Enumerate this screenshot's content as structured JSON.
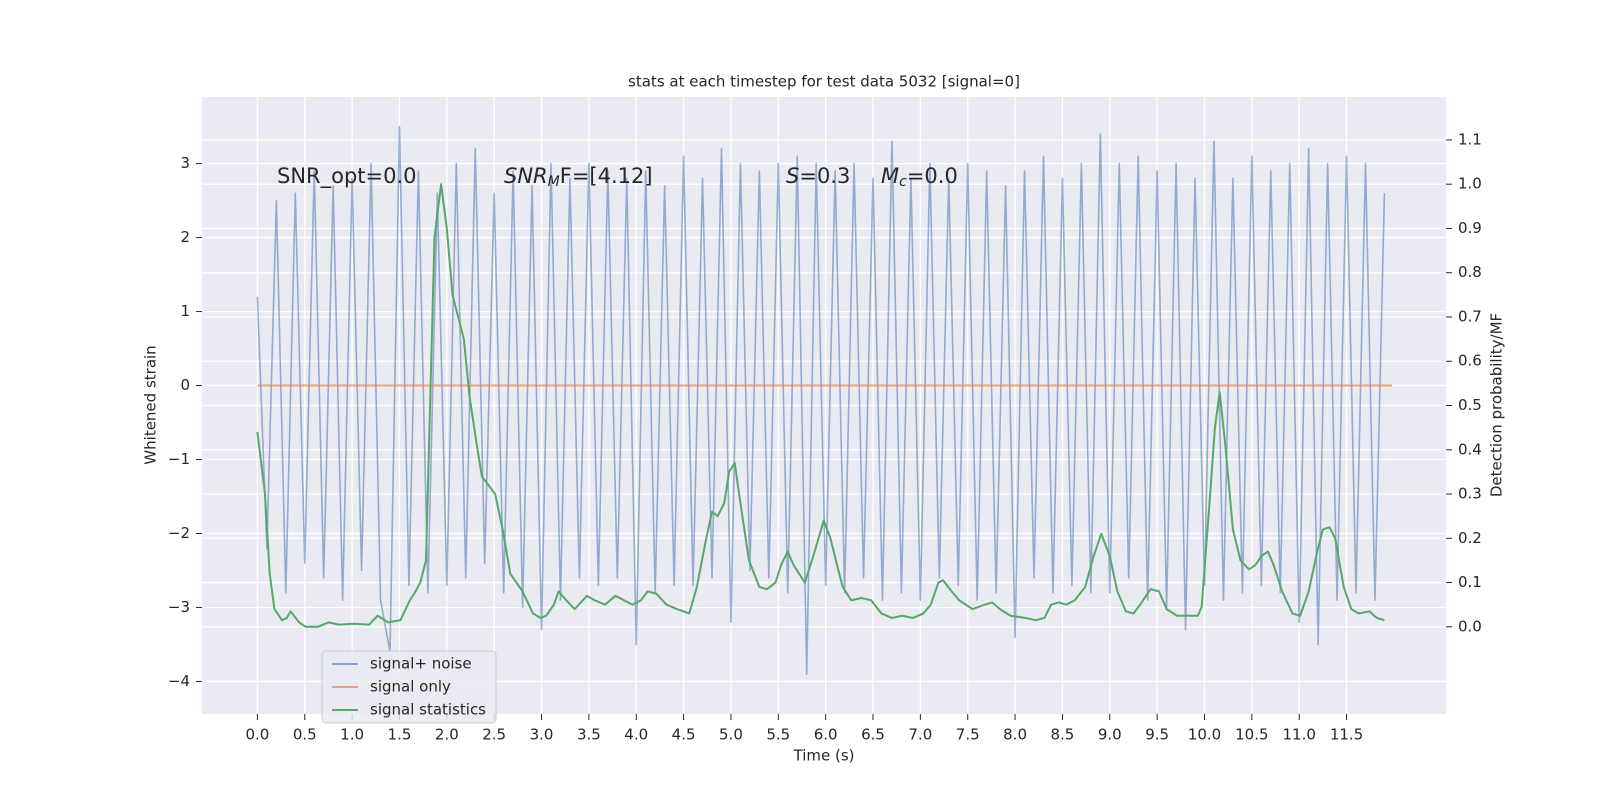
{
  "chart_data": {
    "type": "line",
    "title": "stats at each timestep for test data 5032 [signal=0]",
    "xlabel": "Time (s)",
    "ylabel": "Whitened strain",
    "y2label": "Detection probability/MF",
    "grid": true,
    "xlim": [
      -0.585,
      12.55
    ],
    "ylim": [
      -4.44,
      3.9
    ],
    "y2lim": [
      -0.197,
      1.197
    ],
    "xticks": [
      {
        "value": 0,
        "label": "0.0"
      },
      {
        "value": 0.5,
        "label": "0.5"
      },
      {
        "value": 1,
        "label": "1.0"
      },
      {
        "value": 1.5,
        "label": "1.5"
      },
      {
        "value": 2,
        "label": "2.0"
      },
      {
        "value": 2.5,
        "label": "2.5"
      },
      {
        "value": 3,
        "label": "3.0"
      },
      {
        "value": 3.5,
        "label": "3.5"
      },
      {
        "value": 4,
        "label": "4.0"
      },
      {
        "value": 4.5,
        "label": "4.5"
      },
      {
        "value": 5,
        "label": "5.0"
      },
      {
        "value": 5.5,
        "label": "5.5"
      },
      {
        "value": 6,
        "label": "6.0"
      },
      {
        "value": 6.5,
        "label": "6.5"
      },
      {
        "value": 7,
        "label": "7.0"
      },
      {
        "value": 7.5,
        "label": "7.5"
      },
      {
        "value": 8,
        "label": "8.0"
      },
      {
        "value": 8.5,
        "label": "8.5"
      },
      {
        "value": 9,
        "label": "9.0"
      },
      {
        "value": 9.5,
        "label": "9.5"
      },
      {
        "value": 10,
        "label": "10.0"
      },
      {
        "value": 10.5,
        "label": "10.5"
      },
      {
        "value": 11,
        "label": "11.0"
      },
      {
        "value": 11.5,
        "label": "11.5"
      }
    ],
    "yticks": [
      {
        "value": -4,
        "label": "−4"
      },
      {
        "value": -3,
        "label": "−3"
      },
      {
        "value": -2,
        "label": "−2"
      },
      {
        "value": -1,
        "label": "−1"
      },
      0,
      1,
      2,
      3
    ],
    "y2ticks": [
      {
        "value": 0,
        "label": "0.0"
      },
      {
        "value": 0.1,
        "label": "0.1"
      },
      {
        "value": 0.2,
        "label": "0.2"
      },
      {
        "value": 0.3,
        "label": "0.3"
      },
      {
        "value": 0.4,
        "label": "0.4"
      },
      {
        "value": 0.5,
        "label": "0.5"
      },
      {
        "value": 0.6,
        "label": "0.6"
      },
      {
        "value": 0.7,
        "label": "0.7"
      },
      {
        "value": 0.8,
        "label": "0.8"
      },
      {
        "value": 0.9,
        "label": "0.9"
      },
      {
        "value": 1,
        "label": "1.0"
      },
      {
        "value": 1.1,
        "label": "1.1"
      }
    ],
    "annotations": [
      {
        "main": "SNR_opt=0.0"
      },
      {
        "main": "SNR",
        "sub": "M",
        "tail": "F=[4.12]",
        "italic": true
      },
      {
        "main": "S",
        "tail": "=0.3",
        "italic": true
      },
      {
        "main": "M",
        "sub": "c",
        "tail": "=0.0",
        "italic": true
      }
    ],
    "series": [
      {
        "name": "signal+ noise",
        "color": "#4c72b0",
        "axis": "y",
        "x": [
          0,
          0.1,
          0.2,
          0.3,
          0.4,
          0.5,
          0.6,
          0.7,
          0.8,
          0.9,
          1,
          1.1,
          1.2,
          1.3,
          1.4,
          1.5,
          1.6,
          1.7,
          1.8,
          1.9,
          2,
          2.1,
          2.2,
          2.3,
          2.4,
          2.5,
          2.6,
          2.7,
          2.8,
          2.9,
          3,
          3.1,
          3.2,
          3.3,
          3.4,
          3.5,
          3.6,
          3.7,
          3.8,
          3.9,
          4,
          4.1,
          4.2,
          4.3,
          4.4,
          4.5,
          4.6,
          4.7,
          4.8,
          4.9,
          5,
          5.1,
          5.2,
          5.3,
          5.4,
          5.5,
          5.6,
          5.7,
          5.8,
          5.9,
          6,
          6.1,
          6.2,
          6.3,
          6.4,
          6.5,
          6.6,
          6.7,
          6.8,
          6.9,
          7,
          7.1,
          7.2,
          7.3,
          7.4,
          7.5,
          7.6,
          7.7,
          7.8,
          7.9,
          8,
          8.1,
          8.2,
          8.3,
          8.4,
          8.5,
          8.6,
          8.7,
          8.8,
          8.9,
          9,
          9.1,
          9.2,
          9.3,
          9.4,
          9.5,
          9.6,
          9.7,
          9.8,
          9.9,
          10,
          10.1,
          10.2,
          10.3,
          10.4,
          10.5,
          10.6,
          10.7,
          10.8,
          10.9,
          11,
          11.1,
          11.2,
          11.3,
          11.4,
          11.5,
          11.6,
          11.7,
          11.8,
          11.9
        ],
        "values": [
          1.2,
          -2.2,
          2.5,
          -2.8,
          2.6,
          -2.4,
          2.9,
          -2.6,
          2.7,
          -2.9,
          2.8,
          -2.5,
          3.0,
          -2.9,
          -3.6,
          3.5,
          -2.7,
          2.9,
          -2.8,
          2.6,
          -2.7,
          3.0,
          -2.6,
          3.2,
          -2.4,
          2.6,
          -2.8,
          2.9,
          -3.0,
          2.7,
          -3.3,
          3.0,
          -2.9,
          2.8,
          -2.6,
          3.0,
          -2.7,
          2.9,
          -2.6,
          2.8,
          -3.5,
          2.9,
          -2.8,
          2.7,
          -2.7,
          3.1,
          -2.7,
          2.8,
          -2.6,
          3.2,
          -3.2,
          3.0,
          -2.5,
          2.9,
          -2.6,
          3.0,
          -2.8,
          3.1,
          -3.9,
          3.0,
          -2.7,
          2.9,
          -2.8,
          3.0,
          -2.6,
          2.8,
          -2.9,
          3.3,
          -2.8,
          2.8,
          -2.9,
          3.0,
          -2.6,
          2.8,
          -2.7,
          3.0,
          -2.9,
          2.9,
          -2.8,
          2.7,
          -3.4,
          2.9,
          -2.6,
          3.1,
          -2.8,
          2.8,
          -2.7,
          3.0,
          -2.8,
          3.4,
          -2.8,
          3.0,
          -2.6,
          3.1,
          -2.9,
          2.9,
          -3.0,
          3.0,
          -3.3,
          2.8,
          -2.7,
          3.3,
          -2.9,
          2.8,
          -2.8,
          3.1,
          -2.7,
          2.9,
          -2.8,
          3.0,
          -3.2,
          3.2,
          -3.5,
          3.0,
          -2.9,
          3.1,
          -2.8,
          3.0,
          -2.9,
          2.6
        ]
      },
      {
        "name": "signal only",
        "color": "#dd8452",
        "axis": "y",
        "x": [
          0,
          11.98
        ],
        "values": [
          0,
          0
        ]
      },
      {
        "name": "signal statistics",
        "color": "#55a868",
        "axis": "y2",
        "x": [
          0,
          0.08,
          0.13,
          0.18,
          0.26,
          0.31,
          0.35,
          0.44,
          0.51,
          0.64,
          0.75,
          0.86,
          1.02,
          1.18,
          1.27,
          1.38,
          1.51,
          1.61,
          1.67,
          1.72,
          1.78,
          1.87,
          1.94,
          2.0,
          2.06,
          2.18,
          2.24,
          2.31,
          2.37,
          2.51,
          2.59,
          2.67,
          2.8,
          2.91,
          2.99,
          3.05,
          3.13,
          3.18,
          3.26,
          3.35,
          3.48,
          3.56,
          3.67,
          3.78,
          3.87,
          3.96,
          4.05,
          4.12,
          4.21,
          4.32,
          4.43,
          4.56,
          4.64,
          4.73,
          4.8,
          4.86,
          4.93,
          4.98,
          5.04,
          5.1,
          5.19,
          5.3,
          5.38,
          5.47,
          5.53,
          5.6,
          5.66,
          5.78,
          5.87,
          5.98,
          6.05,
          6.12,
          6.18,
          6.27,
          6.38,
          6.48,
          6.59,
          6.7,
          6.81,
          6.92,
          7.03,
          7.11,
          7.19,
          7.24,
          7.33,
          7.41,
          7.55,
          7.68,
          7.76,
          7.84,
          7.95,
          8.11,
          8.22,
          8.31,
          8.38,
          8.46,
          8.54,
          8.63,
          8.74,
          8.83,
          8.91,
          9.0,
          9.08,
          9.17,
          9.25,
          9.32,
          9.43,
          9.52,
          9.6,
          9.71,
          9.84,
          9.93,
          9.97,
          10.06,
          10.11,
          10.16,
          10.22,
          10.3,
          10.38,
          10.47,
          10.54,
          10.6,
          10.67,
          10.73,
          10.82,
          10.93,
          11.01,
          11.1,
          11.19,
          11.25,
          11.32,
          11.38,
          11.47,
          11.55,
          11.63,
          11.74,
          11.82,
          11.9
        ],
        "values": [
          0.44,
          0.3,
          0.12,
          0.04,
          0.015,
          0.02,
          0.035,
          0.01,
          0.0,
          0.0,
          0.01,
          0.005,
          0.007,
          0.005,
          0.025,
          0.01,
          0.015,
          0.06,
          0.08,
          0.1,
          0.15,
          0.88,
          1.0,
          0.9,
          0.75,
          0.65,
          0.52,
          0.42,
          0.34,
          0.3,
          0.22,
          0.12,
          0.08,
          0.03,
          0.02,
          0.025,
          0.05,
          0.08,
          0.06,
          0.04,
          0.07,
          0.06,
          0.05,
          0.07,
          0.06,
          0.05,
          0.06,
          0.08,
          0.075,
          0.05,
          0.04,
          0.03,
          0.09,
          0.19,
          0.26,
          0.25,
          0.28,
          0.35,
          0.37,
          0.28,
          0.15,
          0.09,
          0.085,
          0.1,
          0.14,
          0.17,
          0.14,
          0.1,
          0.16,
          0.24,
          0.2,
          0.14,
          0.09,
          0.06,
          0.065,
          0.06,
          0.03,
          0.02,
          0.025,
          0.02,
          0.03,
          0.05,
          0.1,
          0.105,
          0.08,
          0.06,
          0.04,
          0.05,
          0.055,
          0.04,
          0.025,
          0.02,
          0.015,
          0.02,
          0.05,
          0.055,
          0.05,
          0.06,
          0.09,
          0.16,
          0.21,
          0.16,
          0.08,
          0.035,
          0.03,
          0.05,
          0.085,
          0.08,
          0.04,
          0.025,
          0.025,
          0.025,
          0.045,
          0.3,
          0.45,
          0.53,
          0.41,
          0.22,
          0.15,
          0.13,
          0.14,
          0.16,
          0.17,
          0.14,
          0.08,
          0.03,
          0.025,
          0.08,
          0.17,
          0.22,
          0.225,
          0.2,
          0.09,
          0.04,
          0.03,
          0.035,
          0.02,
          0.015
        ]
      }
    ]
  }
}
